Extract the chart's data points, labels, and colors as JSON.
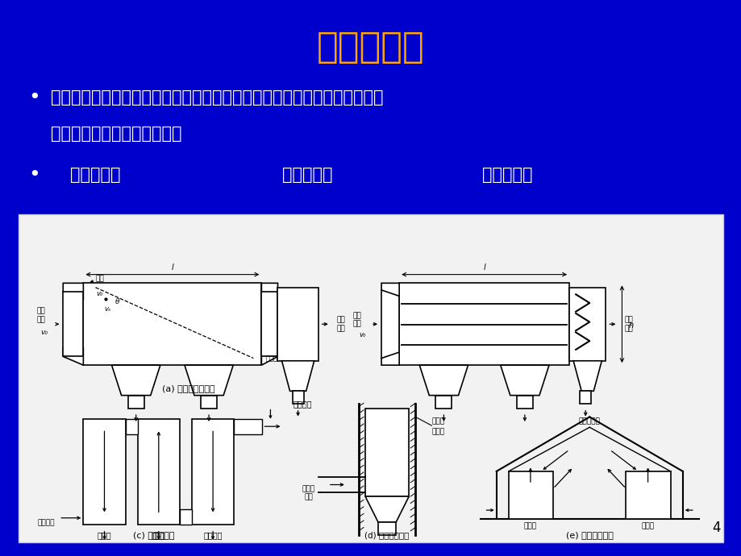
{
  "bg_color": "#0000CC",
  "title": "机械除尘器",
  "title_color": "#FFA500",
  "title_fontsize": 32,
  "bullet1_line1": "机械除尘器通常指利用质量力（重力、惯性力和离心力）的作用使颗粒物与",
  "bullet1_line2": "气体分离的装置，常用的有：",
  "bullet2_item1": "重力沉降室",
  "bullet2_item2": "惯性除尘器",
  "bullet2_item3": "旋风除尘器",
  "bullet_color": "#FFFFFF",
  "bullet_fontsize": 15,
  "page_number": "4",
  "page_num_color": "#000000",
  "page_num_fontsize": 12
}
